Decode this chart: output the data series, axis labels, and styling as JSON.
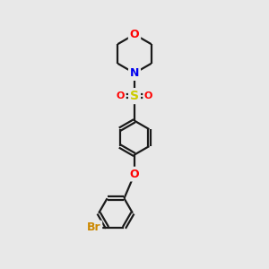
{
  "bg_color": "#e8e8e8",
  "bond_color": "#1a1a1a",
  "atom_colors": {
    "O": "#ff0000",
    "N": "#0000ee",
    "S": "#cccc00",
    "Br": "#cc8800"
  },
  "font_size": 9,
  "lw": 1.6
}
